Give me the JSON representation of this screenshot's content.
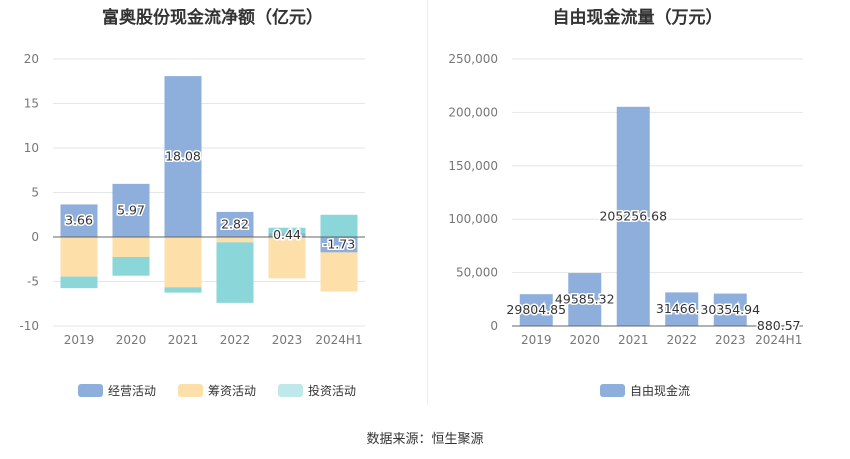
{
  "chart_data": [
    {
      "type": "bar",
      "stacked": true,
      "title": "富奥股份现金流净额（亿元）",
      "categories": [
        "2019",
        "2020",
        "2021",
        "2022",
        "2023",
        "2024H1"
      ],
      "ylim": [
        -10,
        20
      ],
      "yticks": [
        "20",
        "15",
        "10",
        "5",
        "0",
        "-5",
        "-10"
      ],
      "series": [
        {
          "name": "经营活动",
          "color": "#8eaedb",
          "values": [
            3.66,
            5.97,
            18.08,
            2.82,
            0.44,
            -1.73
          ]
        },
        {
          "name": "筹资活动",
          "color": "#fddfaa",
          "values": [
            -4.45,
            -2.25,
            -5.65,
            -0.6,
            -4.65,
            -4.4
          ]
        },
        {
          "name": "投资活动",
          "color": "#8ad6d9",
          "values": [
            -1.3,
            -2.1,
            -0.6,
            -6.8,
            0.6,
            2.5
          ]
        }
      ],
      "data_labels": [
        "3.66",
        "5.97",
        "18.08",
        "2.82",
        "0.44",
        "-1.73"
      ],
      "grid": true,
      "legend": "bottom"
    },
    {
      "type": "bar",
      "title": "自由现金流量（万元）",
      "categories": [
        "2019",
        "2020",
        "2021",
        "2022",
        "2023",
        "2024H1"
      ],
      "ylim": [
        0,
        250000
      ],
      "yticks": [
        "250,000",
        "200,000",
        "150,000",
        "100,000",
        "50,000",
        "0"
      ],
      "series": [
        {
          "name": "自由现金流",
          "color": "#8eaedb",
          "values": [
            29804.85,
            49585.32,
            205256.68,
            31466.5,
            30354.94,
            880.57
          ]
        }
      ],
      "data_labels": [
        "29804.85",
        "49585.32",
        "205256.68",
        "31466.5",
        "30354.94",
        "880.57"
      ],
      "grid": true,
      "legend": "bottom"
    }
  ],
  "source": "数据来源：恒生聚源"
}
